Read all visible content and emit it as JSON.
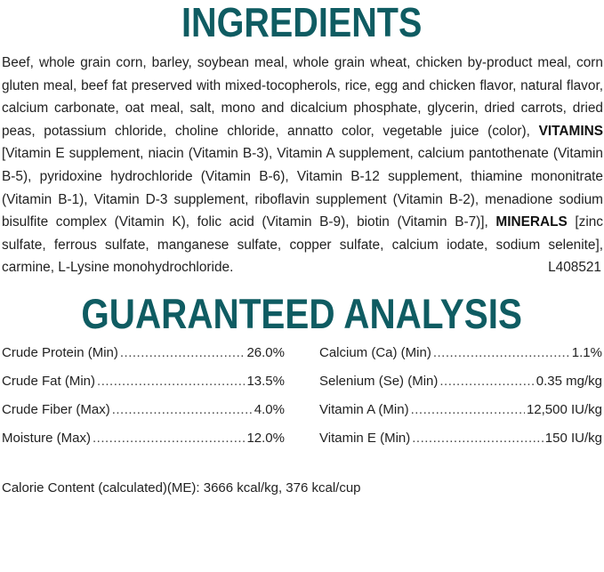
{
  "ingredients": {
    "title": "INGREDIENTS",
    "text_1": "Beef, whole grain corn, barley, soybean meal, whole grain wheat, chicken by-product meal, corn gluten meal, beef fat preserved with mixed-tocopherols, rice, egg and chicken flavor, natural flavor, calcium carbonate, oat meal, salt, mono and dicalcium phosphate, glycerin, dried carrots, dried peas, potassium chloride, choline chloride, annatto color, vegetable juice (color), ",
    "vitamins_label": "VITAMINS",
    "text_2": " [Vitamin E supplement, niacin (Vitamin B-3), Vitamin A supplement, calcium pantothenate (Vitamin B-5), pyridoxine hydrochloride (Vitamin B-6), Vitamin B-12 supplement, thiamine mononitrate (Vitamin B-1), Vitamin D-3 supplement, riboflavin supplement (Vitamin B-2), menadione sodium bisulfite complex (Vitamin K), folic acid (Vitamin B-9), biotin (Vitamin B-7)], ",
    "minerals_label": "MINERALS",
    "text_3": " [zinc sulfate, ferrous sulfate, manganese sulfate, copper sulfate, calcium iodate, sodium selenite], carmine, L-Lysine monohydrochloride.",
    "lot_code": "L408521"
  },
  "analysis": {
    "title": "GUARANTEED ANALYSIS",
    "left": [
      {
        "label": "Crude Protein (Min)",
        "value": "26.0%"
      },
      {
        "label": "Crude Fat (Min)",
        "value": "13.5%"
      },
      {
        "label": "Crude Fiber (Max)",
        "value": "4.0%"
      },
      {
        "label": "Moisture (Max)",
        "value": "12.0%"
      }
    ],
    "right": [
      {
        "label": "Calcium (Ca) (Min)",
        "value": "1.1%"
      },
      {
        "label": "Selenium (Se) (Min)",
        "value": "0.35 mg/kg"
      },
      {
        "label": "Vitamin A (Min)",
        "value": "12,500 IU/kg"
      },
      {
        "label": "Vitamin E (Min)",
        "value": "150 IU/kg"
      }
    ],
    "calorie_content": "Calorie Content (calculated)(ME): 3666 kcal/kg, 376 kcal/cup"
  },
  "colors": {
    "heading": "#0f5c62",
    "text": "#222222"
  }
}
